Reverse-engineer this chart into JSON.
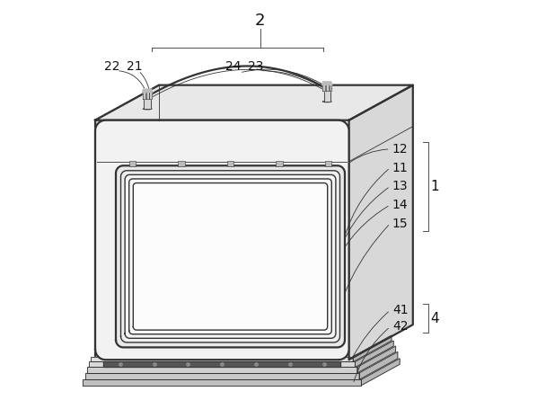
{
  "bg_color": "#ffffff",
  "line_color": "#333333",
  "label_color": "#111111",
  "figsize": [
    5.98,
    4.65
  ],
  "dpi": 100,
  "battery": {
    "fl": 0.08,
    "fr": 0.72,
    "fb": 0.12,
    "ft": 0.72,
    "sdx": 0.16,
    "sdy": 0.1,
    "corner_r": 0.03
  }
}
